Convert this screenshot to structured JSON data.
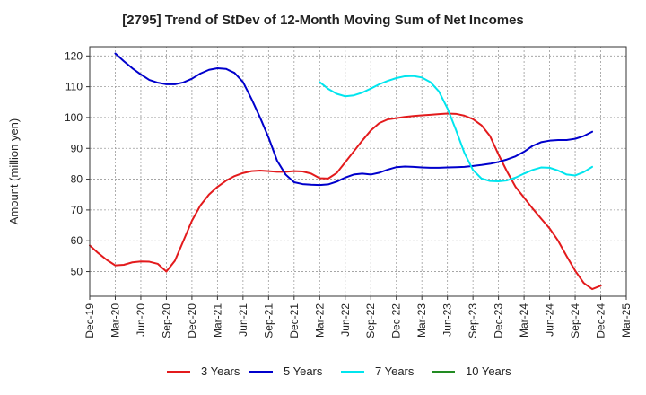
{
  "chart_data": {
    "type": "line",
    "title": "[2795]  Trend of StDev of 12-Month Moving Sum of Net Incomes",
    "xlabel": "",
    "ylabel": "Amount (million yen)",
    "ylim": [
      42,
      123
    ],
    "y_ticks": [
      50,
      60,
      70,
      80,
      90,
      100,
      110,
      120
    ],
    "x_ticks": [
      "Dec-19",
      "Mar-20",
      "Jun-20",
      "Sep-20",
      "Dec-20",
      "Mar-21",
      "Jun-21",
      "Sep-21",
      "Dec-21",
      "Mar-22",
      "Jun-22",
      "Sep-22",
      "Dec-22",
      "Mar-23",
      "Jun-23",
      "Sep-23",
      "Dec-23",
      "Mar-24",
      "Jun-24",
      "Sep-24",
      "Dec-24",
      "Mar-25"
    ],
    "x_unit": "month index from Dec-19",
    "grid": true,
    "legend_position": "bottom",
    "series": [
      {
        "name": "3 Years",
        "color": "#e31a1c",
        "points": [
          [
            0,
            58.5
          ],
          [
            1,
            56
          ],
          [
            2,
            53.8
          ],
          [
            3,
            52
          ],
          [
            4,
            52.2
          ],
          [
            5,
            53
          ],
          [
            6,
            53.3
          ],
          [
            7,
            53.2
          ],
          [
            8,
            52.5
          ],
          [
            9,
            50
          ],
          [
            10,
            53.5
          ],
          [
            11,
            60
          ],
          [
            12,
            66.5
          ],
          [
            13,
            71.5
          ],
          [
            14,
            75
          ],
          [
            15,
            77.5
          ],
          [
            16,
            79.5
          ],
          [
            17,
            81
          ],
          [
            18,
            82
          ],
          [
            19,
            82.6
          ],
          [
            20,
            82.8
          ],
          [
            21,
            82.6
          ],
          [
            22,
            82.4
          ],
          [
            23,
            82.4
          ],
          [
            24,
            82.6
          ],
          [
            25,
            82.5
          ],
          [
            26,
            81.8
          ],
          [
            27,
            80.3
          ],
          [
            28,
            80.2
          ],
          [
            29,
            82
          ],
          [
            30,
            85.5
          ],
          [
            31,
            89
          ],
          [
            32,
            92.5
          ],
          [
            33,
            95.8
          ],
          [
            34,
            98.2
          ],
          [
            35,
            99.4
          ],
          [
            36,
            99.8
          ],
          [
            37,
            100.2
          ],
          [
            38,
            100.5
          ],
          [
            39,
            100.7
          ],
          [
            40,
            100.9
          ],
          [
            41,
            101.1
          ],
          [
            42,
            101.3
          ],
          [
            43,
            101.2
          ],
          [
            44,
            100.6
          ],
          [
            45,
            99.5
          ],
          [
            46,
            97.5
          ],
          [
            47,
            94
          ],
          [
            48,
            88
          ],
          [
            49,
            82.5
          ],
          [
            50,
            77.5
          ],
          [
            51,
            74
          ],
          [
            52,
            70.5
          ],
          [
            53,
            67.2
          ],
          [
            54,
            64
          ],
          [
            55,
            60
          ],
          [
            56,
            55
          ],
          [
            57,
            50.3
          ],
          [
            58,
            46.3
          ],
          [
            59,
            44.3
          ],
          [
            60,
            45.4
          ]
        ]
      },
      {
        "name": "5 Years",
        "color": "#0000cc",
        "points": [
          [
            3,
            120.8
          ],
          [
            4,
            118.3
          ],
          [
            5,
            116
          ],
          [
            6,
            114
          ],
          [
            7,
            112.2
          ],
          [
            8,
            111.3
          ],
          [
            9,
            110.8
          ],
          [
            10,
            110.8
          ],
          [
            11,
            111.4
          ],
          [
            12,
            112.6
          ],
          [
            13,
            114.3
          ],
          [
            14,
            115.5
          ],
          [
            15,
            116
          ],
          [
            16,
            115.8
          ],
          [
            17,
            114.5
          ],
          [
            18,
            111.5
          ],
          [
            19,
            106
          ],
          [
            20,
            100
          ],
          [
            21,
            93.5
          ],
          [
            22,
            86
          ],
          [
            23,
            81.5
          ],
          [
            24,
            79
          ],
          [
            25,
            78.4
          ],
          [
            26,
            78.2
          ],
          [
            27,
            78.1
          ],
          [
            28,
            78.3
          ],
          [
            29,
            79.2
          ],
          [
            30,
            80.5
          ],
          [
            31,
            81.5
          ],
          [
            32,
            81.8
          ],
          [
            33,
            81.5
          ],
          [
            34,
            82.1
          ],
          [
            35,
            83.1
          ],
          [
            36,
            83.9
          ],
          [
            37,
            84.1
          ],
          [
            38,
            84
          ],
          [
            39,
            83.8
          ],
          [
            40,
            83.7
          ],
          [
            41,
            83.7
          ],
          [
            42,
            83.8
          ],
          [
            43,
            83.9
          ],
          [
            44,
            84
          ],
          [
            45,
            84.3
          ],
          [
            46,
            84.6
          ],
          [
            47,
            85
          ],
          [
            48,
            85.6
          ],
          [
            49,
            86.4
          ],
          [
            50,
            87.4
          ],
          [
            51,
            88.9
          ],
          [
            52,
            90.8
          ],
          [
            53,
            92
          ],
          [
            54,
            92.5
          ],
          [
            55,
            92.7
          ],
          [
            56,
            92.7
          ],
          [
            57,
            93.1
          ],
          [
            58,
            94
          ],
          [
            59,
            95.4
          ]
        ]
      },
      {
        "name": "7 Years",
        "color": "#00e5ee",
        "points": [
          [
            27,
            111.5
          ],
          [
            28,
            109.3
          ],
          [
            29,
            107.7
          ],
          [
            30,
            106.9
          ],
          [
            31,
            107.2
          ],
          [
            32,
            108.1
          ],
          [
            33,
            109.4
          ],
          [
            34,
            110.8
          ],
          [
            35,
            111.9
          ],
          [
            36,
            112.8
          ],
          [
            37,
            113.4
          ],
          [
            38,
            113.5
          ],
          [
            39,
            113
          ],
          [
            40,
            111.5
          ],
          [
            41,
            108.5
          ],
          [
            42,
            103
          ],
          [
            43,
            96
          ],
          [
            44,
            88.5
          ],
          [
            45,
            83
          ],
          [
            46,
            80.2
          ],
          [
            47,
            79.4
          ],
          [
            48,
            79.3
          ],
          [
            49,
            79.6
          ],
          [
            50,
            80.5
          ],
          [
            51,
            81.8
          ],
          [
            52,
            83
          ],
          [
            53,
            83.8
          ],
          [
            54,
            83.7
          ],
          [
            55,
            82.8
          ],
          [
            56,
            81.5
          ],
          [
            57,
            81.2
          ],
          [
            58,
            82.3
          ],
          [
            59,
            84
          ]
        ]
      },
      {
        "name": "10 Years",
        "color": "#228b22",
        "points": []
      }
    ]
  }
}
